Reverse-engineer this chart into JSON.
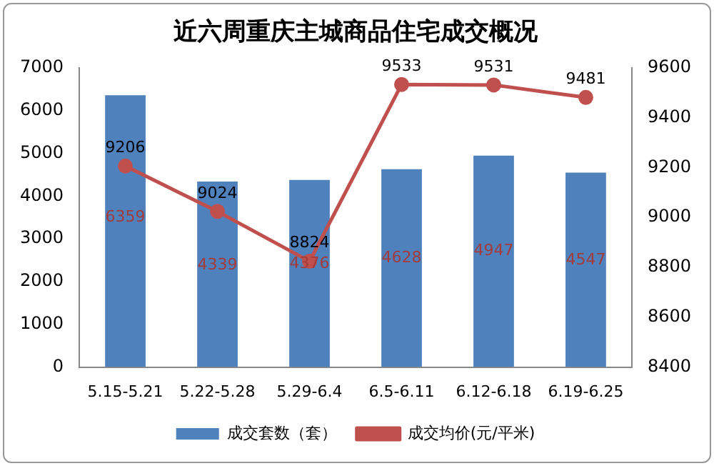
{
  "chart_data": {
    "type": "bar",
    "title": "近六周重庆主城商品住宅成交概况",
    "categories": [
      "5.15-5.21",
      "5.22-5.28",
      "5.29-6.4",
      "6.5-6.11",
      "6.12-6.18",
      "6.19-6.25"
    ],
    "series": [
      {
        "name": "成交套数（套）",
        "color": "#4f81bd",
        "values": [
          6359,
          4339,
          4376,
          4628,
          4947,
          4547
        ]
      },
      {
        "name": "成交均价(元/平米)",
        "type": "line",
        "axis": "y2",
        "color": "#c0504d",
        "marker": "circle",
        "values": [
          9206,
          9024,
          8824,
          9533,
          9531,
          9481
        ]
      }
    ],
    "ylim": [
      0,
      7000
    ],
    "yticks": [
      0,
      1000,
      2000,
      3000,
      4000,
      5000,
      6000,
      7000
    ],
    "y2lim": [
      8400,
      9600
    ],
    "y2ticks": [
      8400,
      8600,
      8800,
      9000,
      9200,
      9400,
      9600
    ],
    "data_labels": true,
    "legend": "bottom",
    "grid": false
  }
}
